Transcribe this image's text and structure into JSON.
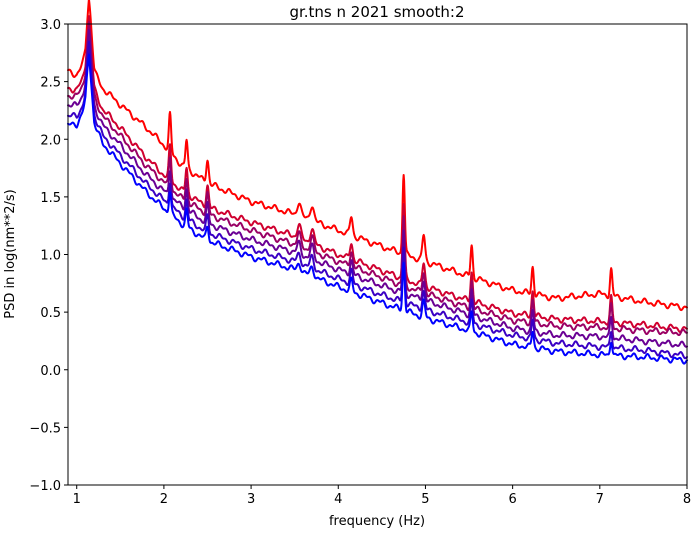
{
  "chart_data": {
    "type": "line",
    "title": "gr.tns n 2021 smooth:2",
    "xlabel": "frequency (Hz)",
    "ylabel": "PSD in log(nm**2/s)",
    "xlim": [
      0.9,
      8
    ],
    "ylim": [
      -1,
      3
    ],
    "x_ticks": [
      "1",
      "2",
      "3",
      "4",
      "5",
      "6",
      "7",
      "8"
    ],
    "y_ticks": [
      "3.0",
      "2.5",
      "2.0",
      "1.5",
      "1.0",
      "0.5",
      "0.0",
      "−0.5",
      "−1.0"
    ],
    "grid": false,
    "legend": "none",
    "peaks_hz": [
      1.14,
      2.07,
      2.26,
      2.5,
      3.55,
      3.7,
      4.15,
      4.75,
      4.98,
      5.53,
      6.23,
      7.13
    ],
    "series": [
      {
        "color": "#ff0000",
        "x": [
          0.9,
          1.0,
          1.1,
          1.14,
          1.2,
          1.3,
          1.5,
          1.8,
          2.0,
          2.2,
          2.5,
          3.0,
          3.5,
          4.0,
          4.5,
          5.0,
          5.5,
          6.0,
          6.5,
          7.0,
          7.5,
          8.0
        ],
        "y": [
          2.59,
          2.56,
          2.68,
          2.99,
          2.58,
          2.44,
          2.3,
          2.1,
          1.95,
          1.78,
          1.62,
          1.46,
          1.35,
          1.21,
          1.07,
          0.94,
          0.81,
          0.69,
          0.62,
          0.66,
          0.59,
          0.54
        ]
      },
      {
        "color": "#d0002f",
        "x": [
          0.9,
          1.0,
          1.1,
          1.14,
          1.2,
          1.3,
          1.5,
          1.8,
          2.0,
          2.2,
          2.5,
          3.0,
          3.5,
          4.0,
          4.5,
          5.0,
          5.5,
          6.0,
          6.5,
          7.0,
          7.5,
          8.0
        ],
        "y": [
          2.44,
          2.43,
          2.55,
          2.85,
          2.42,
          2.26,
          2.1,
          1.84,
          1.69,
          1.56,
          1.41,
          1.28,
          1.16,
          1.0,
          0.86,
          0.72,
          0.6,
          0.49,
          0.44,
          0.42,
          0.39,
          0.35
        ]
      },
      {
        "color": "#9a0064",
        "x": [
          0.9,
          1.0,
          1.1,
          1.14,
          1.2,
          1.3,
          1.5,
          1.8,
          2.0,
          2.2,
          2.5,
          3.0,
          3.5,
          4.0,
          4.5,
          5.0,
          5.5,
          6.0,
          6.5,
          7.0,
          7.5,
          8.0
        ],
        "y": [
          2.38,
          2.37,
          2.5,
          2.8,
          2.36,
          2.2,
          2.03,
          1.77,
          1.63,
          1.49,
          1.35,
          1.21,
          1.09,
          0.94,
          0.8,
          0.66,
          0.54,
          0.43,
          0.38,
          0.37,
          0.34,
          0.32
        ]
      },
      {
        "color": "#6a0094",
        "x": [
          0.9,
          1.0,
          1.1,
          1.14,
          1.2,
          1.3,
          1.5,
          1.8,
          2.0,
          2.2,
          2.5,
          3.0,
          3.5,
          4.0,
          4.5,
          5.0,
          5.5,
          6.0,
          6.5,
          7.0,
          7.5,
          8.0
        ],
        "y": [
          2.3,
          2.29,
          2.42,
          2.74,
          2.28,
          2.12,
          1.95,
          1.69,
          1.55,
          1.42,
          1.27,
          1.13,
          1.02,
          0.87,
          0.73,
          0.6,
          0.48,
          0.36,
          0.3,
          0.29,
          0.25,
          0.21
        ]
      },
      {
        "color": "#3a00c4",
        "x": [
          0.9,
          1.0,
          1.1,
          1.14,
          1.2,
          1.3,
          1.5,
          1.8,
          2.0,
          2.2,
          2.5,
          3.0,
          3.5,
          4.0,
          4.5,
          5.0,
          5.5,
          6.0,
          6.5,
          7.0,
          7.5,
          8.0
        ],
        "y": [
          2.2,
          2.2,
          2.33,
          2.67,
          2.2,
          2.03,
          1.86,
          1.61,
          1.47,
          1.34,
          1.19,
          1.05,
          0.94,
          0.79,
          0.65,
          0.52,
          0.41,
          0.3,
          0.23,
          0.2,
          0.17,
          0.12
        ]
      },
      {
        "color": "#0000ff",
        "x": [
          0.9,
          1.0,
          1.1,
          1.14,
          1.2,
          1.3,
          1.5,
          1.8,
          2.0,
          2.2,
          2.5,
          3.0,
          3.5,
          4.0,
          4.5,
          5.0,
          5.5,
          6.0,
          6.5,
          7.0,
          7.5,
          8.0
        ],
        "y": [
          2.12,
          2.13,
          2.28,
          2.6,
          2.13,
          1.96,
          1.79,
          1.54,
          1.4,
          1.27,
          1.12,
          0.98,
          0.87,
          0.72,
          0.58,
          0.45,
          0.34,
          0.22,
          0.16,
          0.13,
          0.11,
          0.08
        ]
      }
    ]
  }
}
